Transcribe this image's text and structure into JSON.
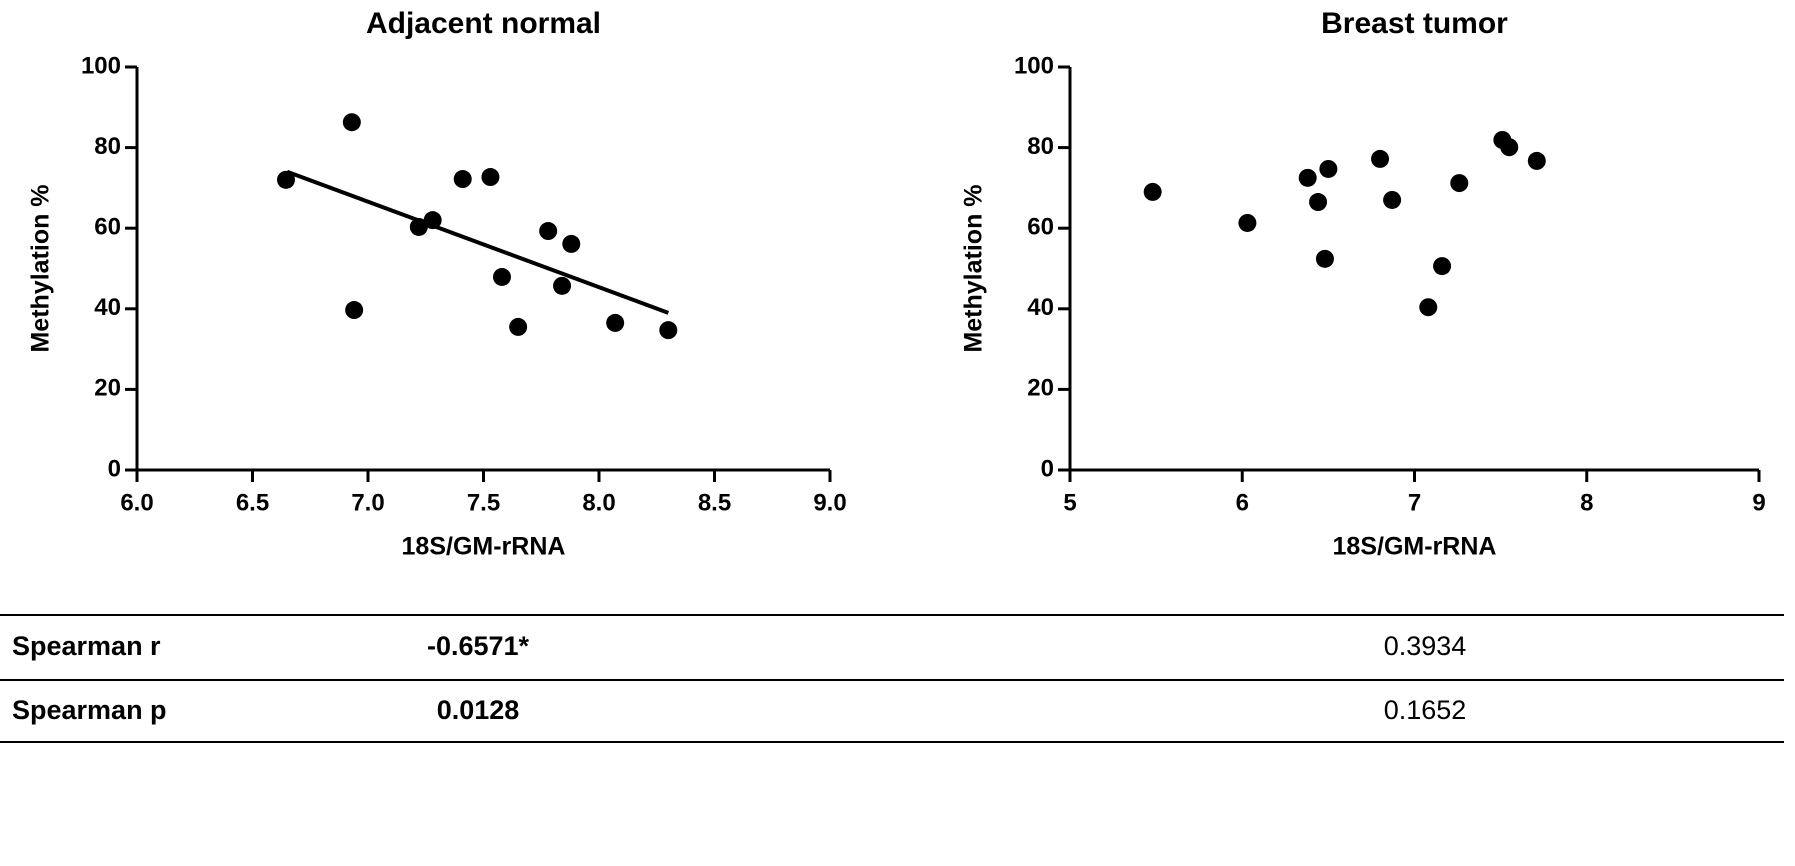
{
  "chart_data": [
    {
      "type": "scatter",
      "title": "Adjacent normal",
      "xlabel": "18S/GM-rRNA",
      "ylabel": "Methylation %",
      "x": [
        6.645,
        6.93,
        6.94,
        7.22,
        7.28,
        7.41,
        7.53,
        7.58,
        7.65,
        7.78,
        7.84,
        7.88,
        8.07,
        8.3
      ],
      "y": [
        72,
        86.3,
        39.7,
        60.3,
        62,
        72.2,
        72.7,
        47.9,
        35.5,
        59.3,
        45.7,
        56.1,
        36.5,
        34.7
      ],
      "fit_line": {
        "x": [
          6.65,
          8.3
        ],
        "y": [
          74,
          39
        ]
      },
      "color": "#000000",
      "xlim": [
        6,
        9
      ],
      "xticks": [
        {
          "value": 6,
          "label": "6.0"
        },
        6.5,
        {
          "value": 7,
          "label": "7.0"
        },
        7.5,
        {
          "value": 8,
          "label": "8.0"
        },
        8.5,
        {
          "value": 9,
          "label": "9.0"
        }
      ],
      "ylim": [
        0,
        100
      ],
      "yticks": [
        0,
        20,
        40,
        60,
        80,
        100
      ]
    },
    {
      "type": "scatter",
      "title": "Breast tumor",
      "xlabel": "18S/GM-rRNA",
      "ylabel": "Methylation %",
      "x": [
        5.48,
        6.03,
        6.38,
        6.44,
        6.48,
        6.5,
        6.8,
        6.87,
        7.08,
        7.16,
        7.26,
        7.51,
        7.55,
        7.71
      ],
      "y": [
        69,
        61.3,
        72.5,
        66.5,
        52.4,
        74.7,
        77.2,
        67,
        40.4,
        50.6,
        71.2,
        81.9,
        80.1,
        76.7
      ],
      "color": "#000000",
      "xlim": [
        5,
        9
      ],
      "xticks": [
        5,
        6,
        7,
        8,
        9
      ],
      "ylim": [
        0,
        100
      ],
      "yticks": [
        0,
        20,
        40,
        60,
        80,
        100
      ]
    }
  ],
  "table": {
    "rows": [
      [
        "Spearman r",
        "-0.6571*",
        "0.3934"
      ],
      [
        "Spearman p",
        "0.0128",
        "0.1652"
      ]
    ]
  }
}
